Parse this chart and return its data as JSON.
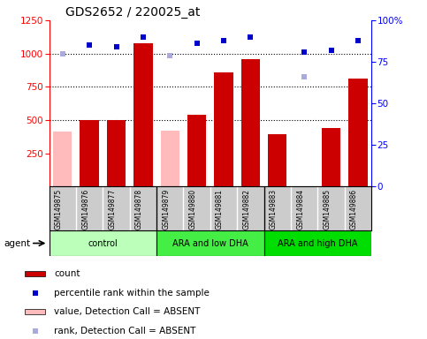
{
  "title": "GDS2652 / 220025_at",
  "samples": [
    "GSM149875",
    "GSM149876",
    "GSM149877",
    "GSM149878",
    "GSM149879",
    "GSM149880",
    "GSM149881",
    "GSM149882",
    "GSM149883",
    "GSM149884",
    "GSM149885",
    "GSM149886"
  ],
  "groups": [
    {
      "label": "control",
      "color": "#bbffbb",
      "start": 0,
      "end": 4
    },
    {
      "label": "ARA and low DHA",
      "color": "#44ee44",
      "start": 4,
      "end": 8
    },
    {
      "label": "ARA and high DHA",
      "color": "#00dd00",
      "start": 8,
      "end": 12
    }
  ],
  "counts": [
    null,
    500,
    500,
    1080,
    null,
    540,
    860,
    960,
    390,
    null,
    440,
    810
  ],
  "counts_absent": [
    410,
    null,
    null,
    null,
    420,
    null,
    null,
    null,
    null,
    null,
    null,
    null
  ],
  "percentile_ranks": [
    null,
    85,
    84,
    90,
    null,
    86,
    88,
    90,
    null,
    81,
    82,
    88
  ],
  "percentile_ranks_absent": [
    80,
    null,
    null,
    null,
    79,
    null,
    null,
    null,
    null,
    null,
    null,
    null
  ],
  "rank_absent": [
    null,
    null,
    null,
    null,
    null,
    null,
    null,
    null,
    null,
    66,
    null,
    null
  ],
  "ylim_left": [
    0,
    1250
  ],
  "ylim_right": [
    0,
    100
  ],
  "yticks_left": [
    250,
    500,
    750,
    1000,
    1250
  ],
  "yticks_right": [
    0,
    25,
    50,
    75,
    100
  ],
  "bar_color": "#cc0000",
  "bar_color_absent": "#ffbbbb",
  "dot_color": "#0000cc",
  "dot_color_absent": "#aaaadd",
  "bg_color": "#cccccc",
  "agent_label": "agent",
  "legend": [
    {
      "label": "count",
      "color": "#cc0000",
      "type": "bar"
    },
    {
      "label": "percentile rank within the sample",
      "color": "#0000cc",
      "type": "dot"
    },
    {
      "label": "value, Detection Call = ABSENT",
      "color": "#ffbbbb",
      "type": "bar"
    },
    {
      "label": "rank, Detection Call = ABSENT",
      "color": "#aaaadd",
      "type": "dot"
    }
  ]
}
